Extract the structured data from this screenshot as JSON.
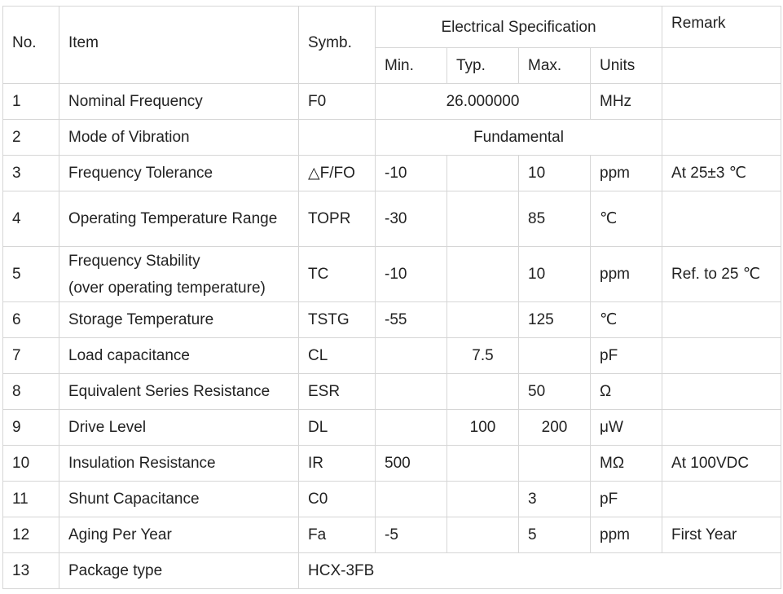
{
  "header": {
    "no": "No.",
    "item": "Item",
    "symb": "Symb.",
    "electrical_spec": "Electrical Specification",
    "remark": "Remark",
    "min": "Min.",
    "typ": "Typ.",
    "max": "Max.",
    "units": "Units"
  },
  "rows": [
    {
      "no": "1",
      "item": "Nominal Frequency",
      "symb": "F0",
      "value": "26.000000",
      "units": "MHz",
      "remark": ""
    },
    {
      "no": "2",
      "item": "Mode of Vibration",
      "symb": "",
      "value": "Fundamental",
      "remark": ""
    },
    {
      "no": "3",
      "item": "Frequency Tolerance",
      "symb": "△F/FO",
      "min": "-10",
      "typ": "",
      "max": "10",
      "units": "ppm",
      "remark": "At 25±3 ℃"
    },
    {
      "no": "4",
      "item": "Operating Temperature Range",
      "symb": "TOPR",
      "min": "-30",
      "typ": "",
      "max": "85",
      "units": "℃",
      "remark": ""
    },
    {
      "no": "5",
      "item_line1": "Frequency Stability",
      "item_line2": "(over operating temperature)",
      "symb": "TC",
      "min": "-10",
      "typ": "",
      "max": "10",
      "units": "ppm",
      "remark": "Ref. to 25 ℃"
    },
    {
      "no": "6",
      "item": "Storage Temperature",
      "symb": "TSTG",
      "min": "-55",
      "typ": "",
      "max": "125",
      "units": "℃",
      "remark": ""
    },
    {
      "no": "7",
      "item": "Load capacitance",
      "symb": "CL",
      "min": "",
      "typ": "7.5",
      "max": "",
      "units": "pF",
      "remark": ""
    },
    {
      "no": "8",
      "item": "Equivalent Series Resistance",
      "symb": "ESR",
      "min": "",
      "typ": "",
      "max": "50",
      "units": "Ω",
      "remark": ""
    },
    {
      "no": "9",
      "item": "Drive Level",
      "symb": "DL",
      "min": "",
      "typ": "100",
      "max": "200",
      "units": "μW",
      "remark": ""
    },
    {
      "no": "10",
      "item": "Insulation Resistance",
      "symb": "IR",
      "min": "500",
      "typ": "",
      "max": "",
      "units": "MΩ",
      "remark": "At 100VDC"
    },
    {
      "no": "11",
      "item": "Shunt Capacitance",
      "symb": "C0",
      "min": "",
      "typ": "",
      "max": "3",
      "units": "pF",
      "remark": ""
    },
    {
      "no": "12",
      "item": "Aging Per Year",
      "symb": "Fa",
      "min": "-5",
      "typ": "",
      "max": "5",
      "units": "ppm",
      "remark": "First Year"
    },
    {
      "no": "13",
      "item": "Package type",
      "value": "HCX-3FB"
    }
  ]
}
